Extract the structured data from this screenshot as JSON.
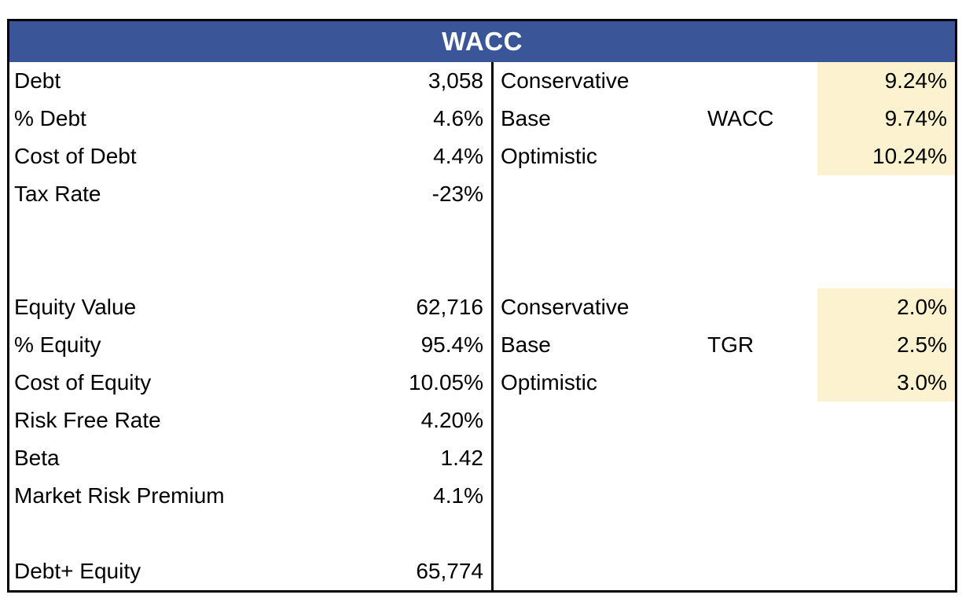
{
  "title": "WACC",
  "colors": {
    "header_bg": "#3A5699",
    "header_text": "#FFFFFF",
    "highlight": "#FDF2D0",
    "border_color": "#000000",
    "cell_text": "#000000"
  },
  "left": {
    "rows": [
      {
        "label": "Debt",
        "value": "3,058"
      },
      {
        "label": "% Debt",
        "value": "4.6%"
      },
      {
        "label": "Cost of Debt",
        "value": "4.4%"
      },
      {
        "label": "Tax Rate",
        "value": "-23%"
      },
      {
        "label": "",
        "value": ""
      },
      {
        "label": "",
        "value": ""
      },
      {
        "label": "Equity Value",
        "value": "62,716"
      },
      {
        "label": "% Equity",
        "value": "95.4%"
      },
      {
        "label": "Cost of Equity",
        "value": "10.05%"
      },
      {
        "label": "Risk Free Rate",
        "value": "4.20%"
      },
      {
        "label": "Beta",
        "value": "1.42"
      },
      {
        "label": "Market Risk Premium",
        "value": "4.1%"
      },
      {
        "label": "",
        "value": ""
      },
      {
        "label": "Debt+ Equity",
        "value": "65,774"
      }
    ]
  },
  "right": {
    "groups": [
      {
        "metric": "WACC",
        "rows": [
          {
            "scenario": "Conservative",
            "metric_label": "",
            "value": "9.24%"
          },
          {
            "scenario": "Base",
            "metric_label": "WACC",
            "value": "9.74%"
          },
          {
            "scenario": "Optimistic",
            "metric_label": "",
            "value": "10.24%"
          }
        ]
      },
      {
        "metric": "TGR",
        "rows": [
          {
            "scenario": "Conservative",
            "metric_label": "",
            "value": "2.0%"
          },
          {
            "scenario": "Base",
            "metric_label": "TGR",
            "value": "2.5%"
          },
          {
            "scenario": "Optimistic",
            "metric_label": "",
            "value": "3.0%"
          }
        ]
      }
    ]
  }
}
